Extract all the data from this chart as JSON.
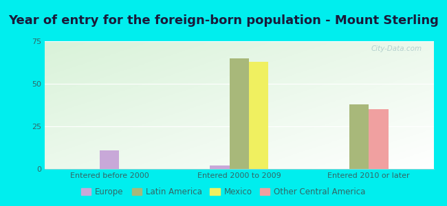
{
  "title": "Year of entry for the foreign-born population - Mount Sterling",
  "background_color": "#00EEEE",
  "plot_bg_top": "#e8f4e8",
  "plot_bg_bottom": "#d0ecd0",
  "categories": [
    "Entered before 2000",
    "Entered 2000 to 2009",
    "Entered 2010 or later"
  ],
  "series": [
    {
      "name": "Europe",
      "color": "#c8a8d8",
      "values": [
        11,
        2,
        0
      ]
    },
    {
      "name": "Latin America",
      "color": "#a8b87a",
      "values": [
        0,
        65,
        38
      ]
    },
    {
      "name": "Mexico",
      "color": "#f0f060",
      "values": [
        0,
        63,
        0
      ]
    },
    {
      "name": "Other Central America",
      "color": "#f0a0a0",
      "values": [
        0,
        0,
        35
      ]
    }
  ],
  "ylim": [
    0,
    75
  ],
  "yticks": [
    0,
    25,
    50,
    75
  ],
  "title_fontsize": 13,
  "tick_fontsize": 8,
  "legend_fontsize": 8.5,
  "bar_width": 0.15,
  "watermark": "City-Data.com",
  "tick_color": "#336666",
  "title_color": "#1a1a3a"
}
